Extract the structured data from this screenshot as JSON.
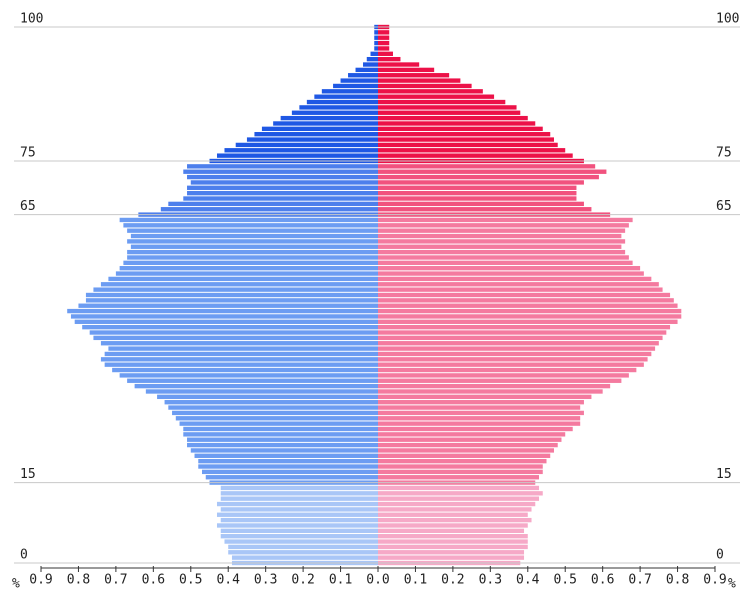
{
  "chart_data": {
    "type": "pyramid",
    "xlabel": "%",
    "xlim": [
      0,
      0.9
    ],
    "xticks": [
      {
        "value": 0,
        "label": "0.0"
      },
      0.1,
      0.2,
      0.3,
      0.4,
      0.5,
      0.6,
      0.7,
      0.8,
      0.9
    ],
    "ylim": [
      0,
      100
    ],
    "yticks": [
      0,
      15,
      65,
      75,
      100
    ],
    "grid": true,
    "series": [
      {
        "side": "left",
        "colors": [
          "#a9c6f7",
          "#6c9cf2",
          "#4d7fec",
          "#1f58e4"
        ],
        "values": [
          0.39,
          0.39,
          0.4,
          0.4,
          0.41,
          0.42,
          0.42,
          0.43,
          0.42,
          0.43,
          0.42,
          0.43,
          0.42,
          0.42,
          0.42,
          0.45,
          0.46,
          0.47,
          0.48,
          0.48,
          0.49,
          0.5,
          0.51,
          0.51,
          0.52,
          0.52,
          0.53,
          0.54,
          0.55,
          0.56,
          0.57,
          0.59,
          0.62,
          0.65,
          0.67,
          0.69,
          0.71,
          0.73,
          0.74,
          0.73,
          0.72,
          0.74,
          0.76,
          0.77,
          0.79,
          0.81,
          0.82,
          0.83,
          0.8,
          0.78,
          0.78,
          0.76,
          0.74,
          0.72,
          0.7,
          0.69,
          0.68,
          0.67,
          0.67,
          0.66,
          0.67,
          0.66,
          0.67,
          0.68,
          0.69,
          0.64,
          0.58,
          0.56,
          0.52,
          0.51,
          0.51,
          0.5,
          0.51,
          0.52,
          0.51,
          0.45,
          0.43,
          0.41,
          0.38,
          0.35,
          0.33,
          0.31,
          0.28,
          0.26,
          0.23,
          0.21,
          0.19,
          0.17,
          0.15,
          0.12,
          0.1,
          0.08,
          0.06,
          0.04,
          0.03,
          0.02,
          0.01,
          0.01,
          0.01,
          0.01,
          0.01
        ]
      },
      {
        "side": "right",
        "colors": [
          "#f6a9c7",
          "#f47a9f",
          "#f1527e",
          "#ec1148"
        ],
        "values": [
          0.38,
          0.39,
          0.39,
          0.4,
          0.4,
          0.4,
          0.39,
          0.4,
          0.41,
          0.4,
          0.41,
          0.42,
          0.43,
          0.44,
          0.43,
          0.42,
          0.43,
          0.44,
          0.44,
          0.45,
          0.46,
          0.47,
          0.48,
          0.49,
          0.5,
          0.52,
          0.54,
          0.54,
          0.55,
          0.54,
          0.55,
          0.57,
          0.6,
          0.62,
          0.65,
          0.67,
          0.69,
          0.71,
          0.72,
          0.73,
          0.74,
          0.75,
          0.76,
          0.77,
          0.78,
          0.8,
          0.81,
          0.81,
          0.8,
          0.79,
          0.78,
          0.76,
          0.75,
          0.73,
          0.71,
          0.7,
          0.68,
          0.67,
          0.66,
          0.65,
          0.66,
          0.65,
          0.66,
          0.67,
          0.68,
          0.62,
          0.57,
          0.55,
          0.53,
          0.53,
          0.53,
          0.55,
          0.59,
          0.61,
          0.58,
          0.55,
          0.52,
          0.5,
          0.48,
          0.47,
          0.46,
          0.44,
          0.42,
          0.4,
          0.38,
          0.37,
          0.34,
          0.31,
          0.28,
          0.25,
          0.22,
          0.19,
          0.15,
          0.11,
          0.06,
          0.04,
          0.03,
          0.03,
          0.03,
          0.03,
          0.03
        ]
      }
    ]
  }
}
